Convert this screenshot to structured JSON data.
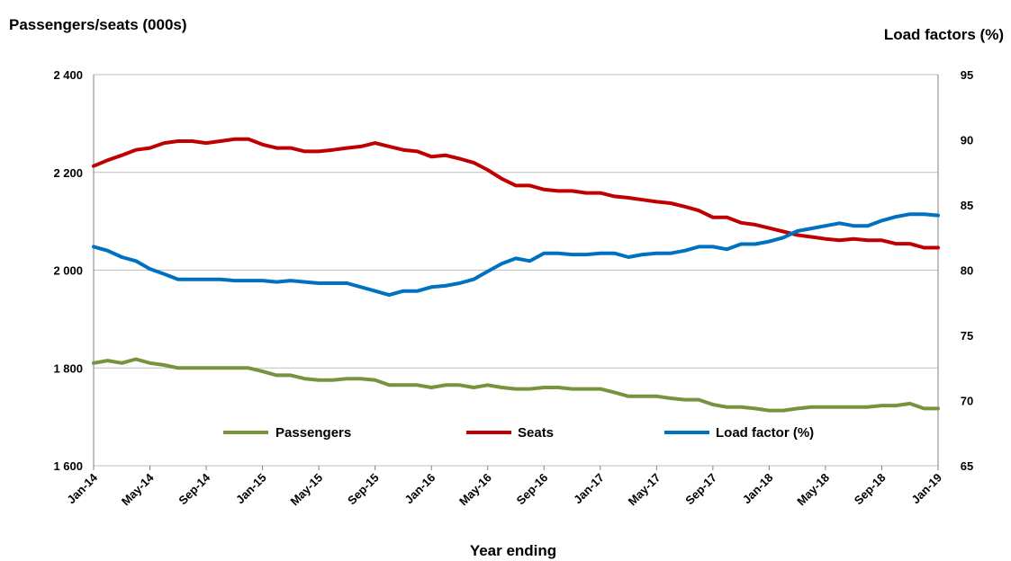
{
  "chart_data": {
    "type": "line",
    "left_axis_title": "Passengers/seats (000s)",
    "right_axis_title": "Load factors (%)",
    "xlabel": "Year ending",
    "y_left_ticks": [
      "2 400",
      "2 200",
      "2 000",
      "1 800",
      "1 600"
    ],
    "y_left_range": [
      1600,
      2400
    ],
    "y_right_ticks": [
      "95",
      "90",
      "85",
      "80",
      "75",
      "70",
      "65"
    ],
    "y_right_range": [
      65,
      95
    ],
    "x_tick_labels": [
      "Jan-14",
      "May-14",
      "Sep-14",
      "Jan-15",
      "May-15",
      "Sep-15",
      "Jan-16",
      "May-16",
      "Sep-16",
      "Jan-17",
      "May-17",
      "Sep-17",
      "Jan-18",
      "May-18",
      "Sep-18",
      "Jan-19"
    ],
    "x_start": "Jan-14",
    "x_end": "Jan-19",
    "grid": "horizontal",
    "legend_position": "bottom-inside",
    "series": [
      {
        "name": "Passengers",
        "axis": "left",
        "color": "#77933c",
        "values": [
          1810,
          1815,
          1810,
          1818,
          1810,
          1806,
          1800,
          1800,
          1800,
          1800,
          1800,
          1800,
          1793,
          1785,
          1785,
          1778,
          1775,
          1775,
          1778,
          1778,
          1775,
          1765,
          1765,
          1765,
          1760,
          1765,
          1765,
          1760,
          1765,
          1760,
          1757,
          1757,
          1760,
          1760,
          1757,
          1757,
          1757,
          1750,
          1742,
          1742,
          1742,
          1738,
          1735,
          1735,
          1725,
          1720,
          1720,
          1717,
          1713,
          1713,
          1717,
          1720,
          1720,
          1720,
          1720,
          1720,
          1723,
          1723,
          1727,
          1717,
          1717
        ]
      },
      {
        "name": "Seats",
        "axis": "left",
        "color": "#c00000",
        "values": [
          2213,
          2225,
          2235,
          2246,
          2250,
          2260,
          2264,
          2264,
          2260,
          2264,
          2268,
          2268,
          2257,
          2250,
          2250,
          2243,
          2243,
          2246,
          2250,
          2253,
          2260,
          2253,
          2246,
          2243,
          2232,
          2235,
          2228,
          2220,
          2205,
          2187,
          2173,
          2173,
          2165,
          2162,
          2162,
          2158,
          2158,
          2151,
          2148,
          2144,
          2140,
          2137,
          2130,
          2122,
          2108,
          2108,
          2097,
          2093,
          2086,
          2079,
          2072,
          2068,
          2064,
          2061,
          2064,
          2061,
          2061,
          2054,
          2054,
          2046,
          2046
        ]
      },
      {
        "name": "Load factor (%)",
        "axis": "right",
        "color": "#0070c0",
        "values": [
          81.8,
          81.5,
          81.0,
          80.7,
          80.1,
          79.7,
          79.3,
          79.3,
          79.3,
          79.3,
          79.2,
          79.2,
          79.2,
          79.1,
          79.2,
          79.1,
          79.0,
          79.0,
          79.0,
          78.7,
          78.4,
          78.1,
          78.4,
          78.4,
          78.7,
          78.8,
          79.0,
          79.3,
          79.9,
          80.5,
          80.9,
          80.7,
          81.3,
          81.3,
          81.2,
          81.2,
          81.3,
          81.3,
          81.0,
          81.2,
          81.3,
          81.3,
          81.5,
          81.8,
          81.8,
          81.6,
          82.0,
          82.0,
          82.2,
          82.5,
          83.0,
          83.2,
          83.4,
          83.6,
          83.4,
          83.4,
          83.8,
          84.1,
          84.3,
          84.3,
          84.2
        ]
      }
    ]
  }
}
